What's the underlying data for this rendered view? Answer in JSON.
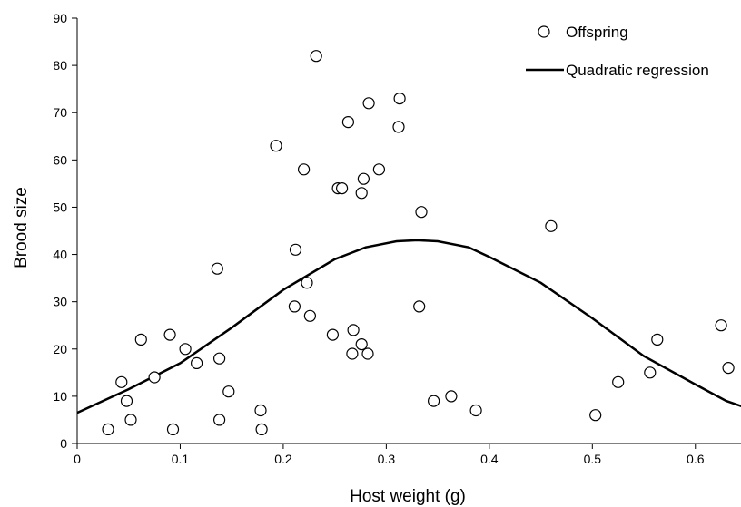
{
  "chart_data": {
    "type": "scatter",
    "title": "",
    "xlabel": "Host weight (g)",
    "ylabel": "Brood size",
    "xlim": [
      0,
      0.65
    ],
    "ylim": [
      0,
      90
    ],
    "x_ticks": [
      "0",
      "0.1",
      "0.2",
      "0.3",
      "0.4",
      "0.5",
      "0.6"
    ],
    "y_ticks": [
      "0",
      "10",
      "20",
      "30",
      "40",
      "50",
      "60",
      "70",
      "80",
      "90"
    ],
    "legend_position": "top-right",
    "grid": false,
    "series": [
      {
        "name": "Offspring",
        "type": "scatter",
        "marker": "open-circle",
        "points": [
          [
            0.03,
            3
          ],
          [
            0.043,
            13
          ],
          [
            0.048,
            9
          ],
          [
            0.052,
            5
          ],
          [
            0.062,
            22
          ],
          [
            0.075,
            14
          ],
          [
            0.09,
            23
          ],
          [
            0.093,
            3
          ],
          [
            0.105,
            20
          ],
          [
            0.116,
            17
          ],
          [
            0.136,
            37
          ],
          [
            0.138,
            18
          ],
          [
            0.138,
            5
          ],
          [
            0.147,
            11
          ],
          [
            0.178,
            7
          ],
          [
            0.179,
            3
          ],
          [
            0.193,
            63
          ],
          [
            0.211,
            29
          ],
          [
            0.212,
            41
          ],
          [
            0.22,
            58
          ],
          [
            0.223,
            34
          ],
          [
            0.226,
            27
          ],
          [
            0.232,
            82
          ],
          [
            0.248,
            23
          ],
          [
            0.253,
            54
          ],
          [
            0.257,
            54
          ],
          [
            0.263,
            68
          ],
          [
            0.267,
            19
          ],
          [
            0.268,
            24
          ],
          [
            0.276,
            21
          ],
          [
            0.276,
            53
          ],
          [
            0.278,
            56
          ],
          [
            0.282,
            19
          ],
          [
            0.283,
            72
          ],
          [
            0.293,
            58
          ],
          [
            0.312,
            67
          ],
          [
            0.313,
            73
          ],
          [
            0.332,
            29
          ],
          [
            0.334,
            49
          ],
          [
            0.346,
            9
          ],
          [
            0.363,
            10
          ],
          [
            0.387,
            7
          ],
          [
            0.46,
            46
          ],
          [
            0.503,
            6
          ],
          [
            0.525,
            13
          ],
          [
            0.556,
            15
          ],
          [
            0.563,
            22
          ],
          [
            0.625,
            25
          ],
          [
            0.632,
            16
          ]
        ]
      },
      {
        "name": "Quadratic regression",
        "type": "line",
        "points": [
          [
            0.0,
            6.5
          ],
          [
            0.05,
            11.5
          ],
          [
            0.1,
            17.0
          ],
          [
            0.15,
            24.5
          ],
          [
            0.2,
            32.5
          ],
          [
            0.25,
            39.0
          ],
          [
            0.28,
            41.5
          ],
          [
            0.31,
            42.8
          ],
          [
            0.33,
            43.0
          ],
          [
            0.35,
            42.8
          ],
          [
            0.38,
            41.5
          ],
          [
            0.4,
            39.5
          ],
          [
            0.45,
            34.0
          ],
          [
            0.5,
            26.5
          ],
          [
            0.55,
            18.5
          ],
          [
            0.6,
            12.5
          ],
          [
            0.63,
            9.0
          ],
          [
            0.65,
            7.5
          ]
        ]
      }
    ]
  }
}
